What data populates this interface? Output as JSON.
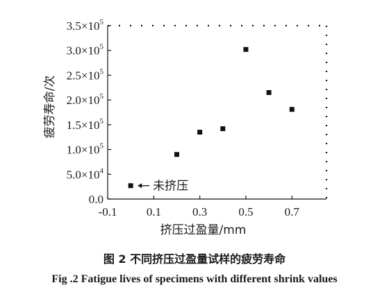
{
  "chart_data": {
    "type": "scatter",
    "xlabel": "挤压过盈量/mm",
    "ylabel": "疲劳寿命/次",
    "xlim": [
      -0.1,
      0.85
    ],
    "ylim": [
      0,
      350000
    ],
    "x_ticks": [
      -0.1,
      0.1,
      0.3,
      0.5,
      0.7
    ],
    "x_tick_labels": [
      "-0.1",
      "0.1",
      "0.3",
      "0.5",
      "0.7"
    ],
    "y_ticks": [
      0,
      50000,
      100000,
      150000,
      200000,
      250000,
      300000,
      350000
    ],
    "y_tick_labels": [
      {
        "mant": "0.0",
        "exp": ""
      },
      {
        "mant": "5.0×10",
        "exp": "4"
      },
      {
        "mant": "1.0×10",
        "exp": "5"
      },
      {
        "mant": "1.5×10",
        "exp": "5"
      },
      {
        "mant": "2.0×10",
        "exp": "5"
      },
      {
        "mant": "2.5×10",
        "exp": "5"
      },
      {
        "mant": "3.0×10",
        "exp": "5"
      },
      {
        "mant": "3.5×10",
        "exp": "5"
      }
    ],
    "x": [
      0.0,
      0.2,
      0.3,
      0.4,
      0.5,
      0.6,
      0.7
    ],
    "y": [
      27000,
      90000,
      135000,
      142000,
      302000,
      215000,
      181000
    ],
    "annotation": {
      "text": "未挤压",
      "point_index": 0
    },
    "grid": false,
    "marker_color": "#111111"
  },
  "caption": {
    "cn": "图 2    不同挤压过盈量试样的疲劳寿命",
    "en": "Fig .2    Fatigue lives of specimens with different shrink values"
  }
}
